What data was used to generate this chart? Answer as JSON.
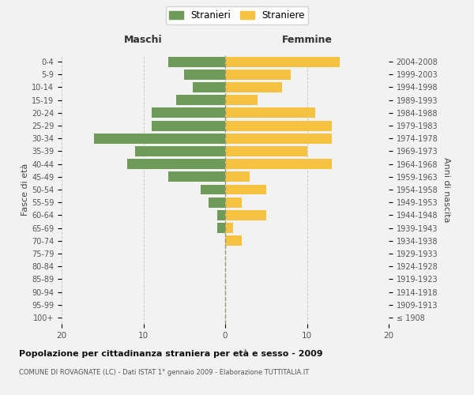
{
  "age_groups": [
    "100+",
    "95-99",
    "90-94",
    "85-89",
    "80-84",
    "75-79",
    "70-74",
    "65-69",
    "60-64",
    "55-59",
    "50-54",
    "45-49",
    "40-44",
    "35-39",
    "30-34",
    "25-29",
    "20-24",
    "15-19",
    "10-14",
    "5-9",
    "0-4"
  ],
  "birth_years": [
    "≤ 1908",
    "1909-1913",
    "1914-1918",
    "1919-1923",
    "1924-1928",
    "1929-1933",
    "1934-1938",
    "1939-1943",
    "1944-1948",
    "1949-1953",
    "1954-1958",
    "1959-1963",
    "1964-1968",
    "1969-1973",
    "1974-1978",
    "1979-1983",
    "1984-1988",
    "1989-1993",
    "1994-1998",
    "1999-2003",
    "2004-2008"
  ],
  "maschi": [
    0,
    0,
    0,
    0,
    0,
    0,
    0,
    1,
    1,
    2,
    3,
    7,
    12,
    11,
    16,
    9,
    9,
    6,
    4,
    5,
    7
  ],
  "femmine": [
    0,
    0,
    0,
    0,
    0,
    0,
    2,
    1,
    5,
    2,
    5,
    3,
    13,
    10,
    13,
    13,
    11,
    4,
    7,
    8,
    14
  ],
  "maschi_color": "#6e9b5a",
  "femmine_color": "#f5c242",
  "background_color": "#f2f2f2",
  "grid_color": "#cccccc",
  "title": "Popolazione per cittadinanza straniera per età e sesso - 2009",
  "subtitle": "COMUNE DI ROVAGNATE (LC) - Dati ISTAT 1° gennaio 2009 - Elaborazione TUTTITALIA.IT",
  "xlabel_left": "Maschi",
  "xlabel_right": "Femmine",
  "ylabel_left": "Fasce di età",
  "ylabel_right": "Anni di nascita",
  "legend_stranieri": "Stranieri",
  "legend_straniere": "Straniere",
  "xlim": 20,
  "bar_height": 0.8
}
